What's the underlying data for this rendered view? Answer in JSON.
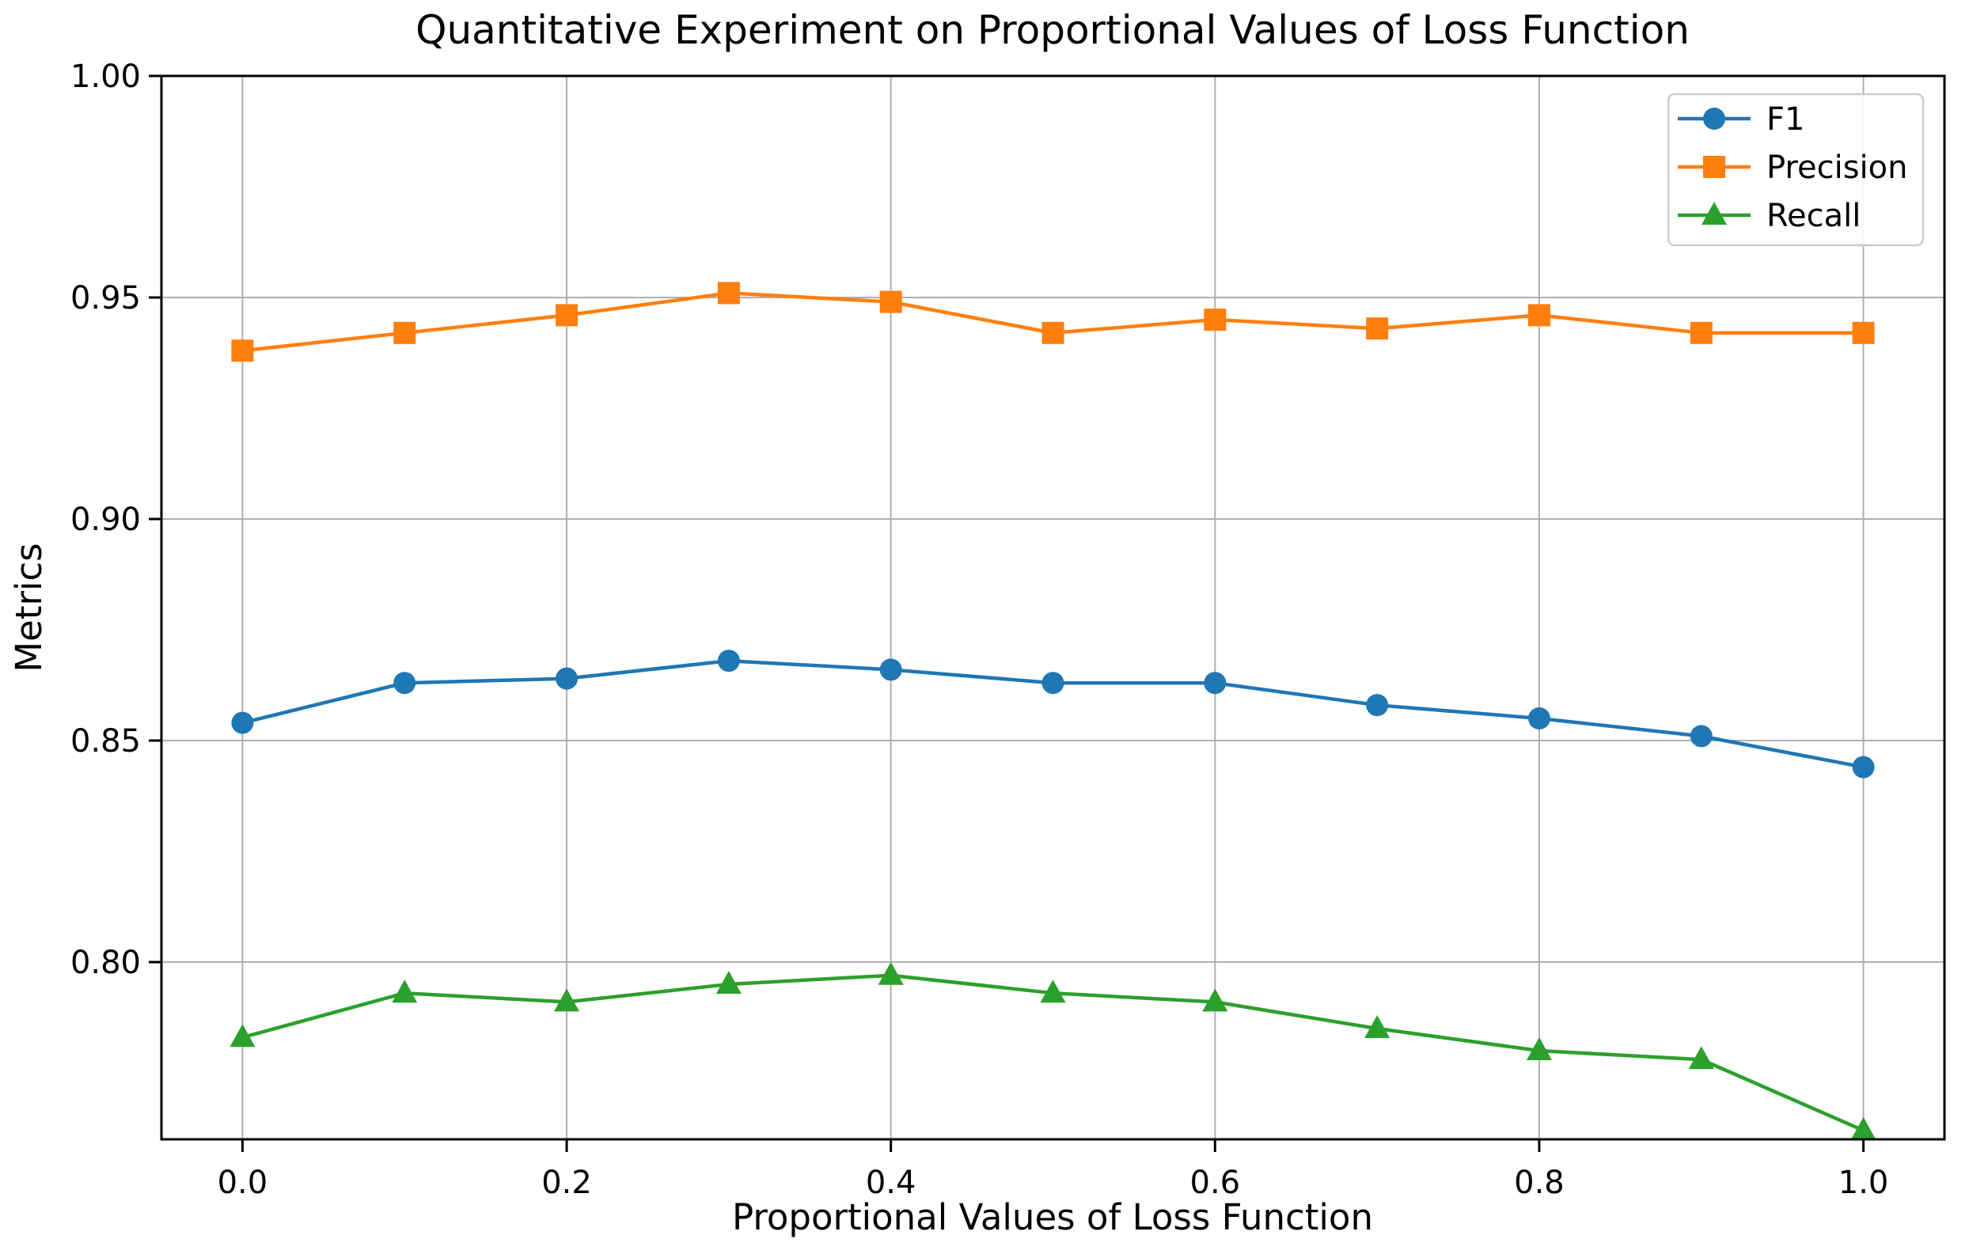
{
  "chart_data": {
    "type": "line",
    "title": "Quantitative Experiment on Proportional Values of Loss Function",
    "xlabel": "Proportional Values of Loss Function",
    "ylabel": "Metrics",
    "x": [
      0.0,
      0.1,
      0.2,
      0.3,
      0.4,
      0.5,
      0.6,
      0.7,
      0.8,
      0.9,
      1.0
    ],
    "series": [
      {
        "name": "F1",
        "color": "#1f77b4",
        "marker": "circle",
        "values": [
          0.854,
          0.863,
          0.864,
          0.868,
          0.866,
          0.863,
          0.863,
          0.858,
          0.855,
          0.851,
          0.844
        ]
      },
      {
        "name": "Precision",
        "color": "#ff7f0e",
        "marker": "square",
        "values": [
          0.938,
          0.942,
          0.946,
          0.951,
          0.949,
          0.942,
          0.945,
          0.943,
          0.946,
          0.942,
          0.942
        ]
      },
      {
        "name": "Recall",
        "color": "#2ca02c",
        "marker": "triangle",
        "values": [
          0.783,
          0.793,
          0.791,
          0.795,
          0.797,
          0.793,
          0.791,
          0.785,
          0.78,
          0.778,
          0.762
        ]
      }
    ],
    "xlim": [
      -0.05,
      1.05
    ],
    "ylim": [
      0.76,
      1.0
    ],
    "x_ticks": [
      0.0,
      0.2,
      0.4,
      0.6,
      0.8,
      1.0
    ],
    "x_ticklabels": [
      "0.0",
      "0.2",
      "0.4",
      "0.6",
      "0.8",
      "1.0"
    ],
    "y_ticks": [
      0.8,
      0.85,
      0.9,
      0.95,
      1.0
    ],
    "y_ticklabels": [
      "0.80",
      "0.85",
      "0.90",
      "0.95",
      "1.00"
    ],
    "grid": true,
    "legend_position": "upper right",
    "legend_labels": [
      "F1",
      "Precision",
      "Recall"
    ],
    "colors": {
      "grid": "#b0b0b0",
      "spine": "#000000",
      "text": "#000000",
      "background": "#ffffff",
      "legend_border": "#cccccc",
      "legend_fill": "#ffffff"
    }
  }
}
